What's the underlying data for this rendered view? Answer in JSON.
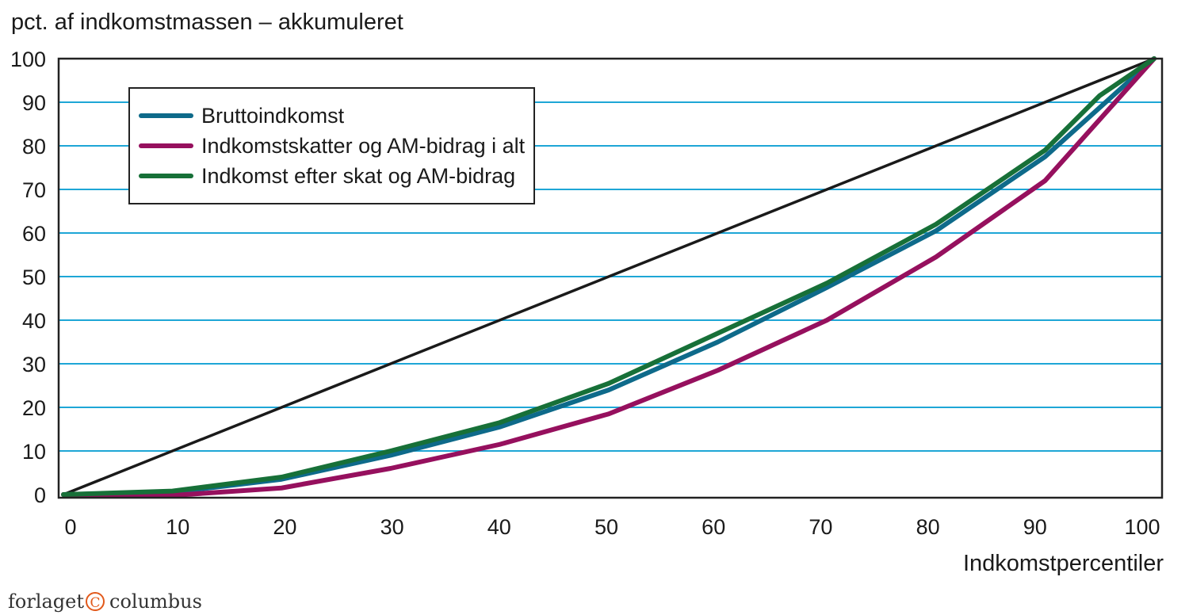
{
  "chart_data": {
    "type": "line",
    "ylabel": "pct. af indkomstmassen – akkumuleret",
    "xlabel": "Indkomstpercentiler",
    "xlim": [
      0,
      100
    ],
    "ylim": [
      0,
      100
    ],
    "xticks": [
      "0",
      "10",
      "20",
      "30",
      "40",
      "50",
      "60",
      "70",
      "80",
      "90",
      "100"
    ],
    "yticks": [
      "0",
      "10",
      "20",
      "30",
      "40",
      "50",
      "60",
      "70",
      "80",
      "90",
      "100"
    ],
    "grid": "horizontal",
    "legend_position": "top-left",
    "equality_line": {
      "x": [
        0,
        100
      ],
      "y": [
        0,
        100
      ],
      "color": "#1a1a1a"
    },
    "series": [
      {
        "name": "Bruttoindkomst",
        "color": "#0e6a8a",
        "x": [
          0,
          10,
          20,
          30,
          40,
          50,
          60,
          70,
          80,
          90,
          100
        ],
        "y": [
          0,
          0.5,
          3.5,
          9,
          15.5,
          24,
          35,
          47.5,
          60.5,
          77.5,
          100
        ]
      },
      {
        "name": "Indkomstskatter og AM-bidrag i alt",
        "color": "#96105e",
        "x": [
          0,
          10,
          20,
          30,
          40,
          50,
          60,
          70,
          80,
          90,
          100
        ],
        "y": [
          0,
          -0.2,
          1.5,
          6,
          11.5,
          18.5,
          28.5,
          40,
          54.5,
          72,
          100
        ]
      },
      {
        "name": "Indkomst efter skat og AM-bidrag",
        "color": "#177038",
        "x": [
          0,
          10,
          20,
          30,
          40,
          50,
          60,
          70,
          80,
          90,
          95,
          100
        ],
        "y": [
          0,
          0.8,
          4,
          10,
          16.5,
          25.5,
          37,
          48.5,
          62,
          79,
          91.5,
          100
        ]
      }
    ]
  },
  "publisher": {
    "left": "forlaget",
    "symbol": "C",
    "right": "columbus"
  }
}
